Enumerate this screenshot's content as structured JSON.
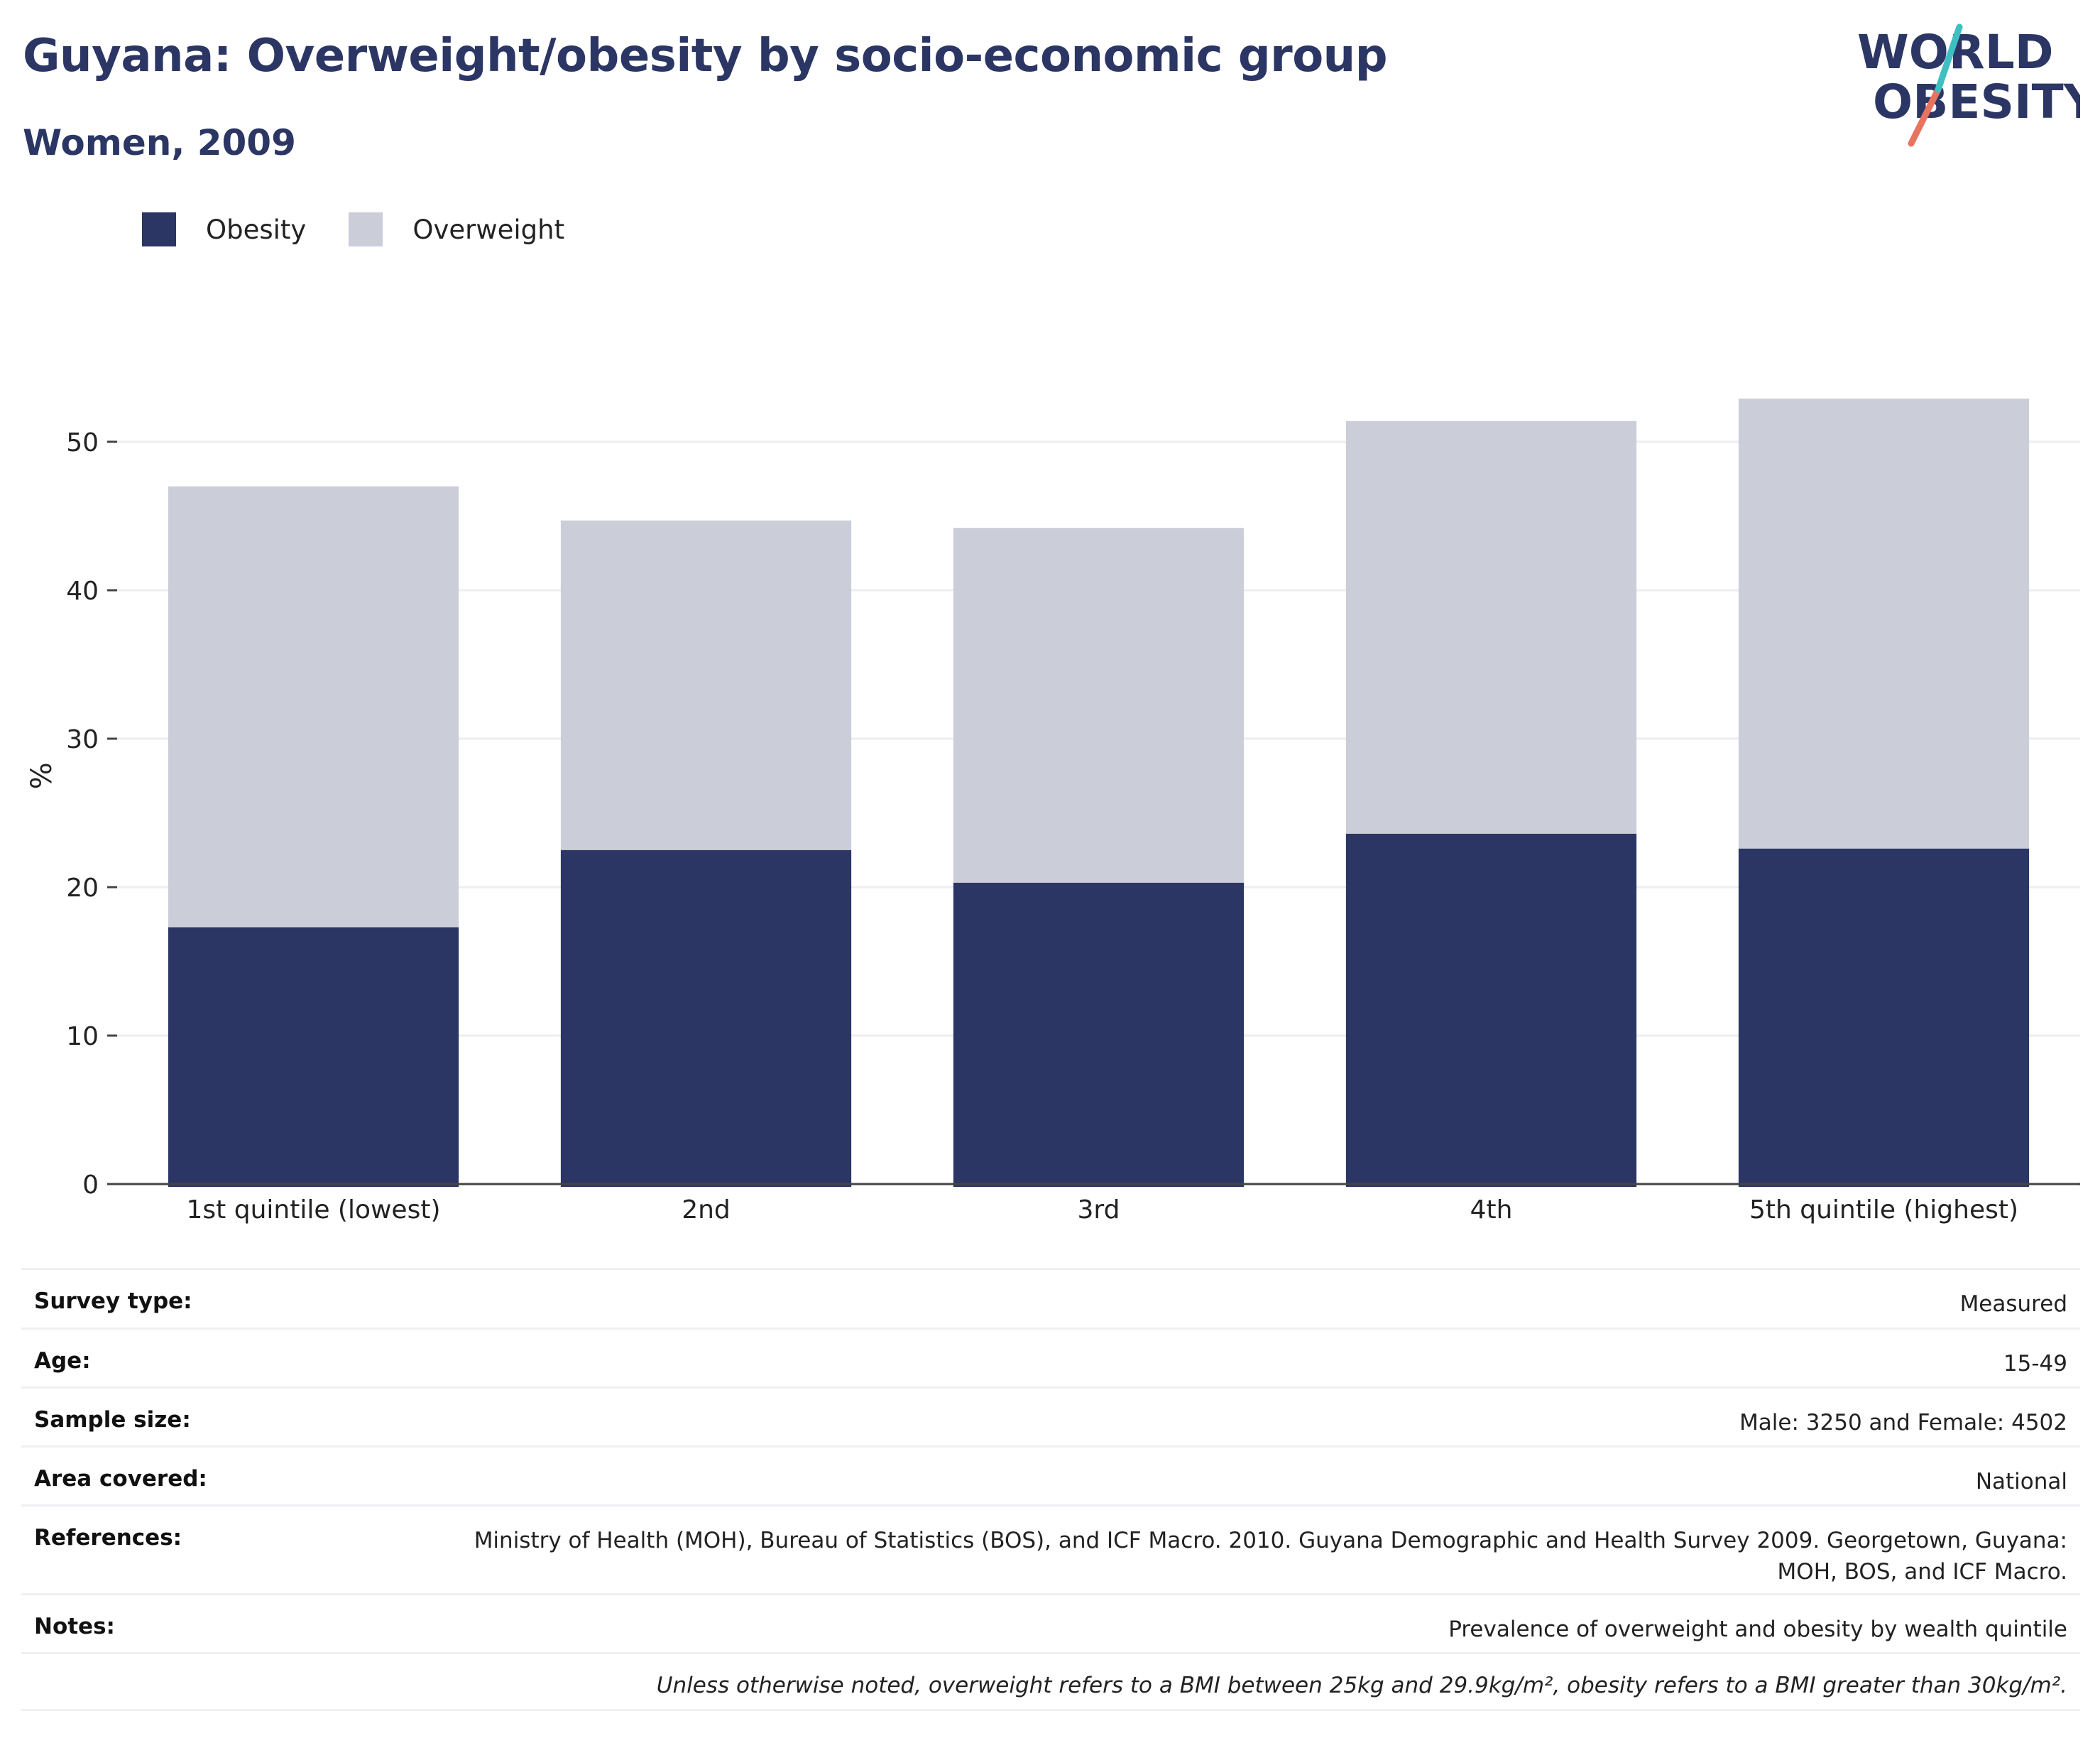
{
  "header": {
    "title": "Guyana: Overweight/obesity by socio-economic group",
    "subtitle": "Women, 2009"
  },
  "logo": {
    "line1": "WORLD",
    "line2": "OBESITY"
  },
  "colors": {
    "obesity": "#2b3664",
    "overweight": "#cbcdd9",
    "brand_teal": "#3fbfc2",
    "brand_coral": "#e8735e"
  },
  "legend": [
    {
      "label": "Obesity",
      "color": "#2b3664"
    },
    {
      "label": "Overweight",
      "color": "#cbcdd9"
    }
  ],
  "chart_data": {
    "type": "bar",
    "stacked": true,
    "categories": [
      "1st quintile (lowest)",
      "2nd",
      "3rd",
      "4th",
      "5th quintile (highest)"
    ],
    "series": [
      {
        "name": "Obesity",
        "values": [
          17.3,
          22.5,
          20.3,
          23.6,
          22.6
        ]
      },
      {
        "name": "Overweight",
        "values": [
          29.7,
          22.2,
          23.9,
          27.8,
          30.3
        ]
      }
    ],
    "ylabel": "%",
    "yticks": [
      0,
      10,
      20,
      30,
      40,
      50
    ],
    "ylim": [
      0,
      55
    ],
    "grid": true,
    "legend_position": "top-left"
  },
  "info": {
    "rows": [
      {
        "key": "Survey type:",
        "value": "Measured"
      },
      {
        "key": "Age:",
        "value": "15-49"
      },
      {
        "key": "Sample size:",
        "value": "Male: 3250 and Female: 4502"
      },
      {
        "key": "Area covered:",
        "value": "National"
      },
      {
        "key": "References:",
        "value": "Ministry of Health (MOH), Bureau of Statistics (BOS), and ICF Macro. 2010. Guyana Demographic and Health Survey 2009. Georgetown, Guyana: MOH, BOS, and ICF Macro."
      },
      {
        "key": "Notes:",
        "value": "Prevalence of overweight and obesity by wealth quintile"
      }
    ],
    "footnote": "Unless otherwise noted, overweight refers to a BMI between 25kg and 29.9kg/m², obesity refers to a BMI greater than 30kg/m²."
  }
}
